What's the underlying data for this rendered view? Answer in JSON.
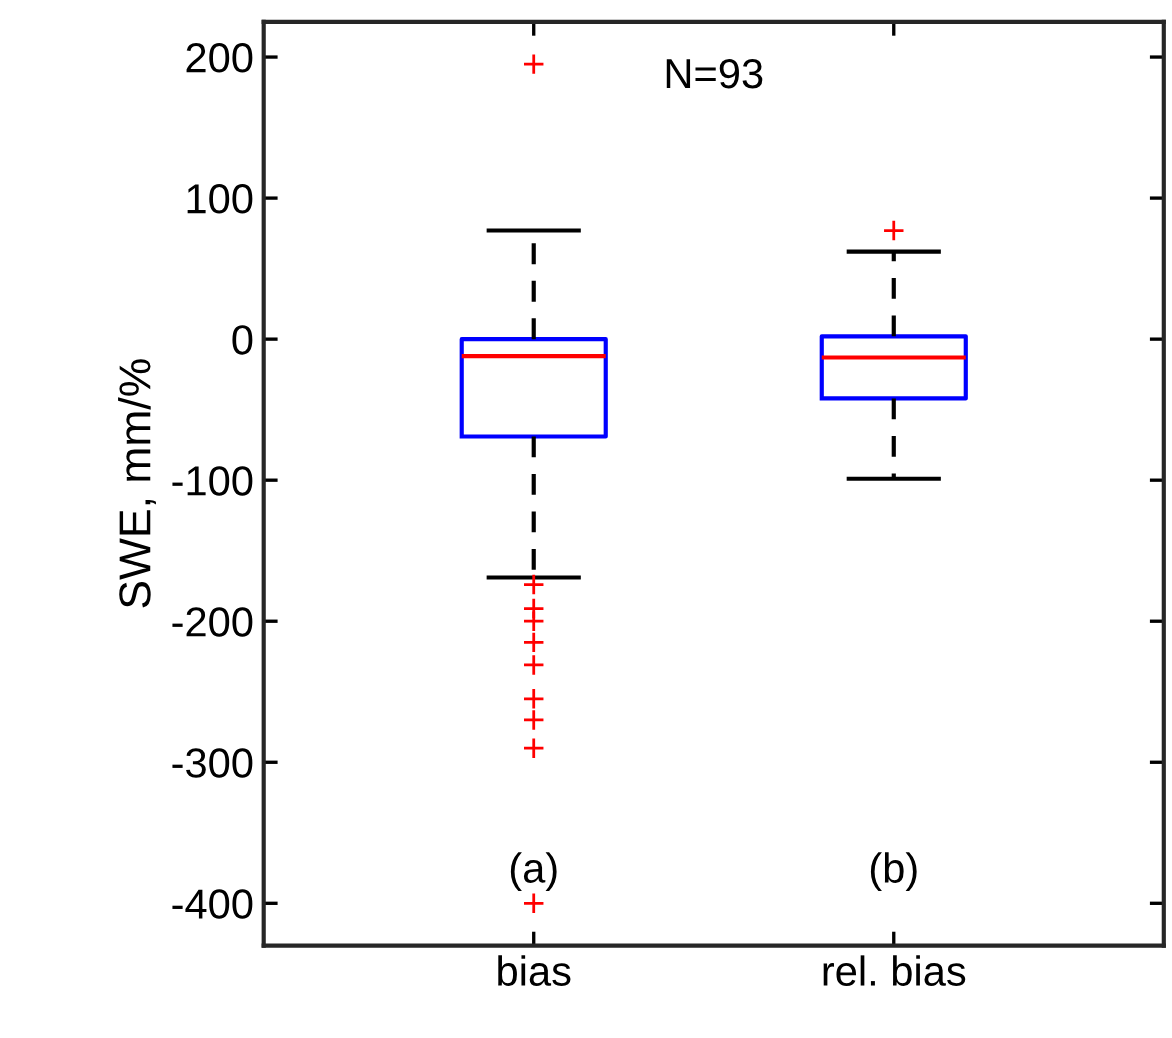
{
  "chart_data": {
    "type": "box",
    "categories": [
      "bias",
      "rel. bias"
    ],
    "ylabel": "SWE, mm/%",
    "ylim": [
      -430,
      225
    ],
    "yticks": [
      -400,
      -300,
      -200,
      -100,
      0,
      100,
      200
    ],
    "boxes": [
      {
        "low": -169,
        "q1": -69,
        "median": -12,
        "q3": 0,
        "high": 77,
        "outliers": [
          195,
          -174,
          -191,
          -200,
          -215,
          -231,
          -255,
          -270,
          -290,
          -400
        ]
      },
      {
        "low": -99,
        "q1": -42,
        "median": -13,
        "q3": 2,
        "high": 62,
        "outliers": [
          77
        ]
      }
    ],
    "color": "#0000ff",
    "annotations": [
      "N=93",
      "(a)",
      "(b)"
    ],
    "grid": false,
    "legend": false
  }
}
